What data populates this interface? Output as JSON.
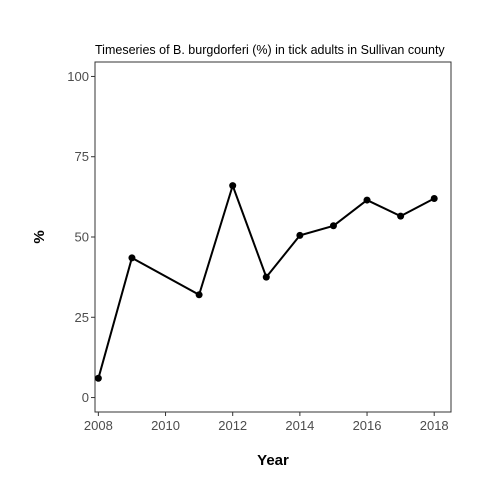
{
  "chart_data": {
    "type": "line",
    "title": "Timeseries of B. burgdorferi (%) in tick adults in Sullivan county",
    "xlabel": "Year",
    "ylabel": "%",
    "x": [
      2008,
      2009,
      2011,
      2012,
      2013,
      2014,
      2015,
      2016,
      2017,
      2018
    ],
    "y": [
      6,
      43.5,
      32,
      66,
      37.5,
      50.5,
      53.5,
      61.5,
      56.5,
      62
    ],
    "xlim": [
      2007.9,
      2018.5
    ],
    "ylim": [
      -4.5,
      104.5
    ],
    "xticks": [
      2008,
      2010,
      2012,
      2014,
      2016,
      2018
    ],
    "yticks": [
      0,
      25,
      50,
      75,
      100
    ],
    "grid": false,
    "legend": "none",
    "line_color": "#000000"
  }
}
